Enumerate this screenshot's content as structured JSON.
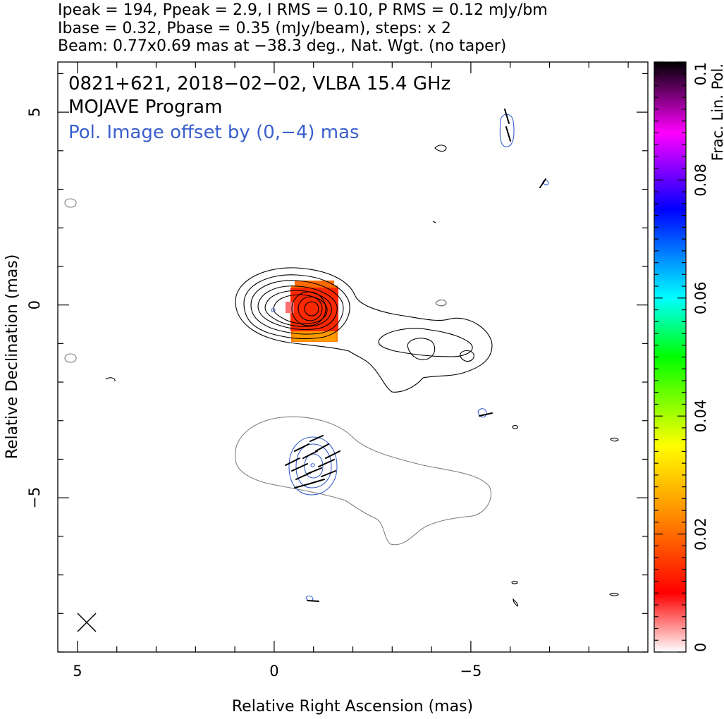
{
  "header": {
    "line1": "Ipeak = 194, Ppeak = 2.9, I RMS = 0.10, P RMS = 0.12 mJy/bm",
    "line2": "Ibase = 0.32, Pbase = 0.35 (mJy/beam), steps: x 2",
    "line3": "Beam: 0.77x0.69 mas at −38.3 deg., Nat. Wgt. (no taper)"
  },
  "annotations": {
    "source_line": "0821+621, 2018−02−02, VLBA 15.4 GHz",
    "program_line": "MOJAVE Program",
    "pol_offset_line": "Pol. Image offset by (0,−4) mas"
  },
  "colors": {
    "stokes_i_contour": "#000000",
    "total_pol_contour": "#808080",
    "pol_contour": "#3a5fcd",
    "evpa_ticks": "#000000",
    "pol_annotation_text": "#3a5fcd",
    "colormap": [
      "#ffffff",
      "#ff0000",
      "#ff8000",
      "#ffff00",
      "#00ff00",
      "#00ffff",
      "#0000ff",
      "#ff00ff",
      "#000000"
    ]
  },
  "chart_data": {
    "type": "contour_map",
    "xlabel": "Relative Right Ascension (mas)",
    "ylabel": "Relative Declination (mas)",
    "xlim": [
      5.5,
      -9.5
    ],
    "ylim": [
      -9,
      6.3
    ],
    "xticks": [
      5,
      0,
      -5
    ],
    "xtick_labels": [
      "5",
      "0",
      "−5"
    ],
    "yticks": [
      5,
      0,
      -5
    ],
    "ytick_labels": [
      "5",
      "0",
      "−5"
    ],
    "colorbar": {
      "label": "Frac. Lin. Pol.",
      "range": [
        0,
        0.1
      ],
      "ticks": [
        0,
        0.02,
        0.04,
        0.06,
        0.08,
        0.1
      ],
      "tick_labels": [
        "0",
        "0.02",
        "0.04",
        "0.06",
        "0.08",
        "0.1"
      ]
    },
    "stokes_i": {
      "peak_position": [
        -0.85,
        -0.15
      ],
      "jet_components": [
        {
          "name": "core",
          "ra": -0.85,
          "dec": -0.15
        },
        {
          "name": "knot",
          "ra": -3.7,
          "dec": -1.2
        },
        {
          "name": "knot",
          "ra": -4.9,
          "dec": -1.3
        }
      ]
    },
    "frac_pol_patch": {
      "center": [
        -0.9,
        -0.2
      ],
      "value_range": [
        0.01,
        0.03
      ]
    },
    "beam": {
      "major_mas": 0.77,
      "minor_mas": 0.69,
      "pa_deg": -38.3,
      "position": [
        5.0,
        -8.5
      ]
    }
  }
}
